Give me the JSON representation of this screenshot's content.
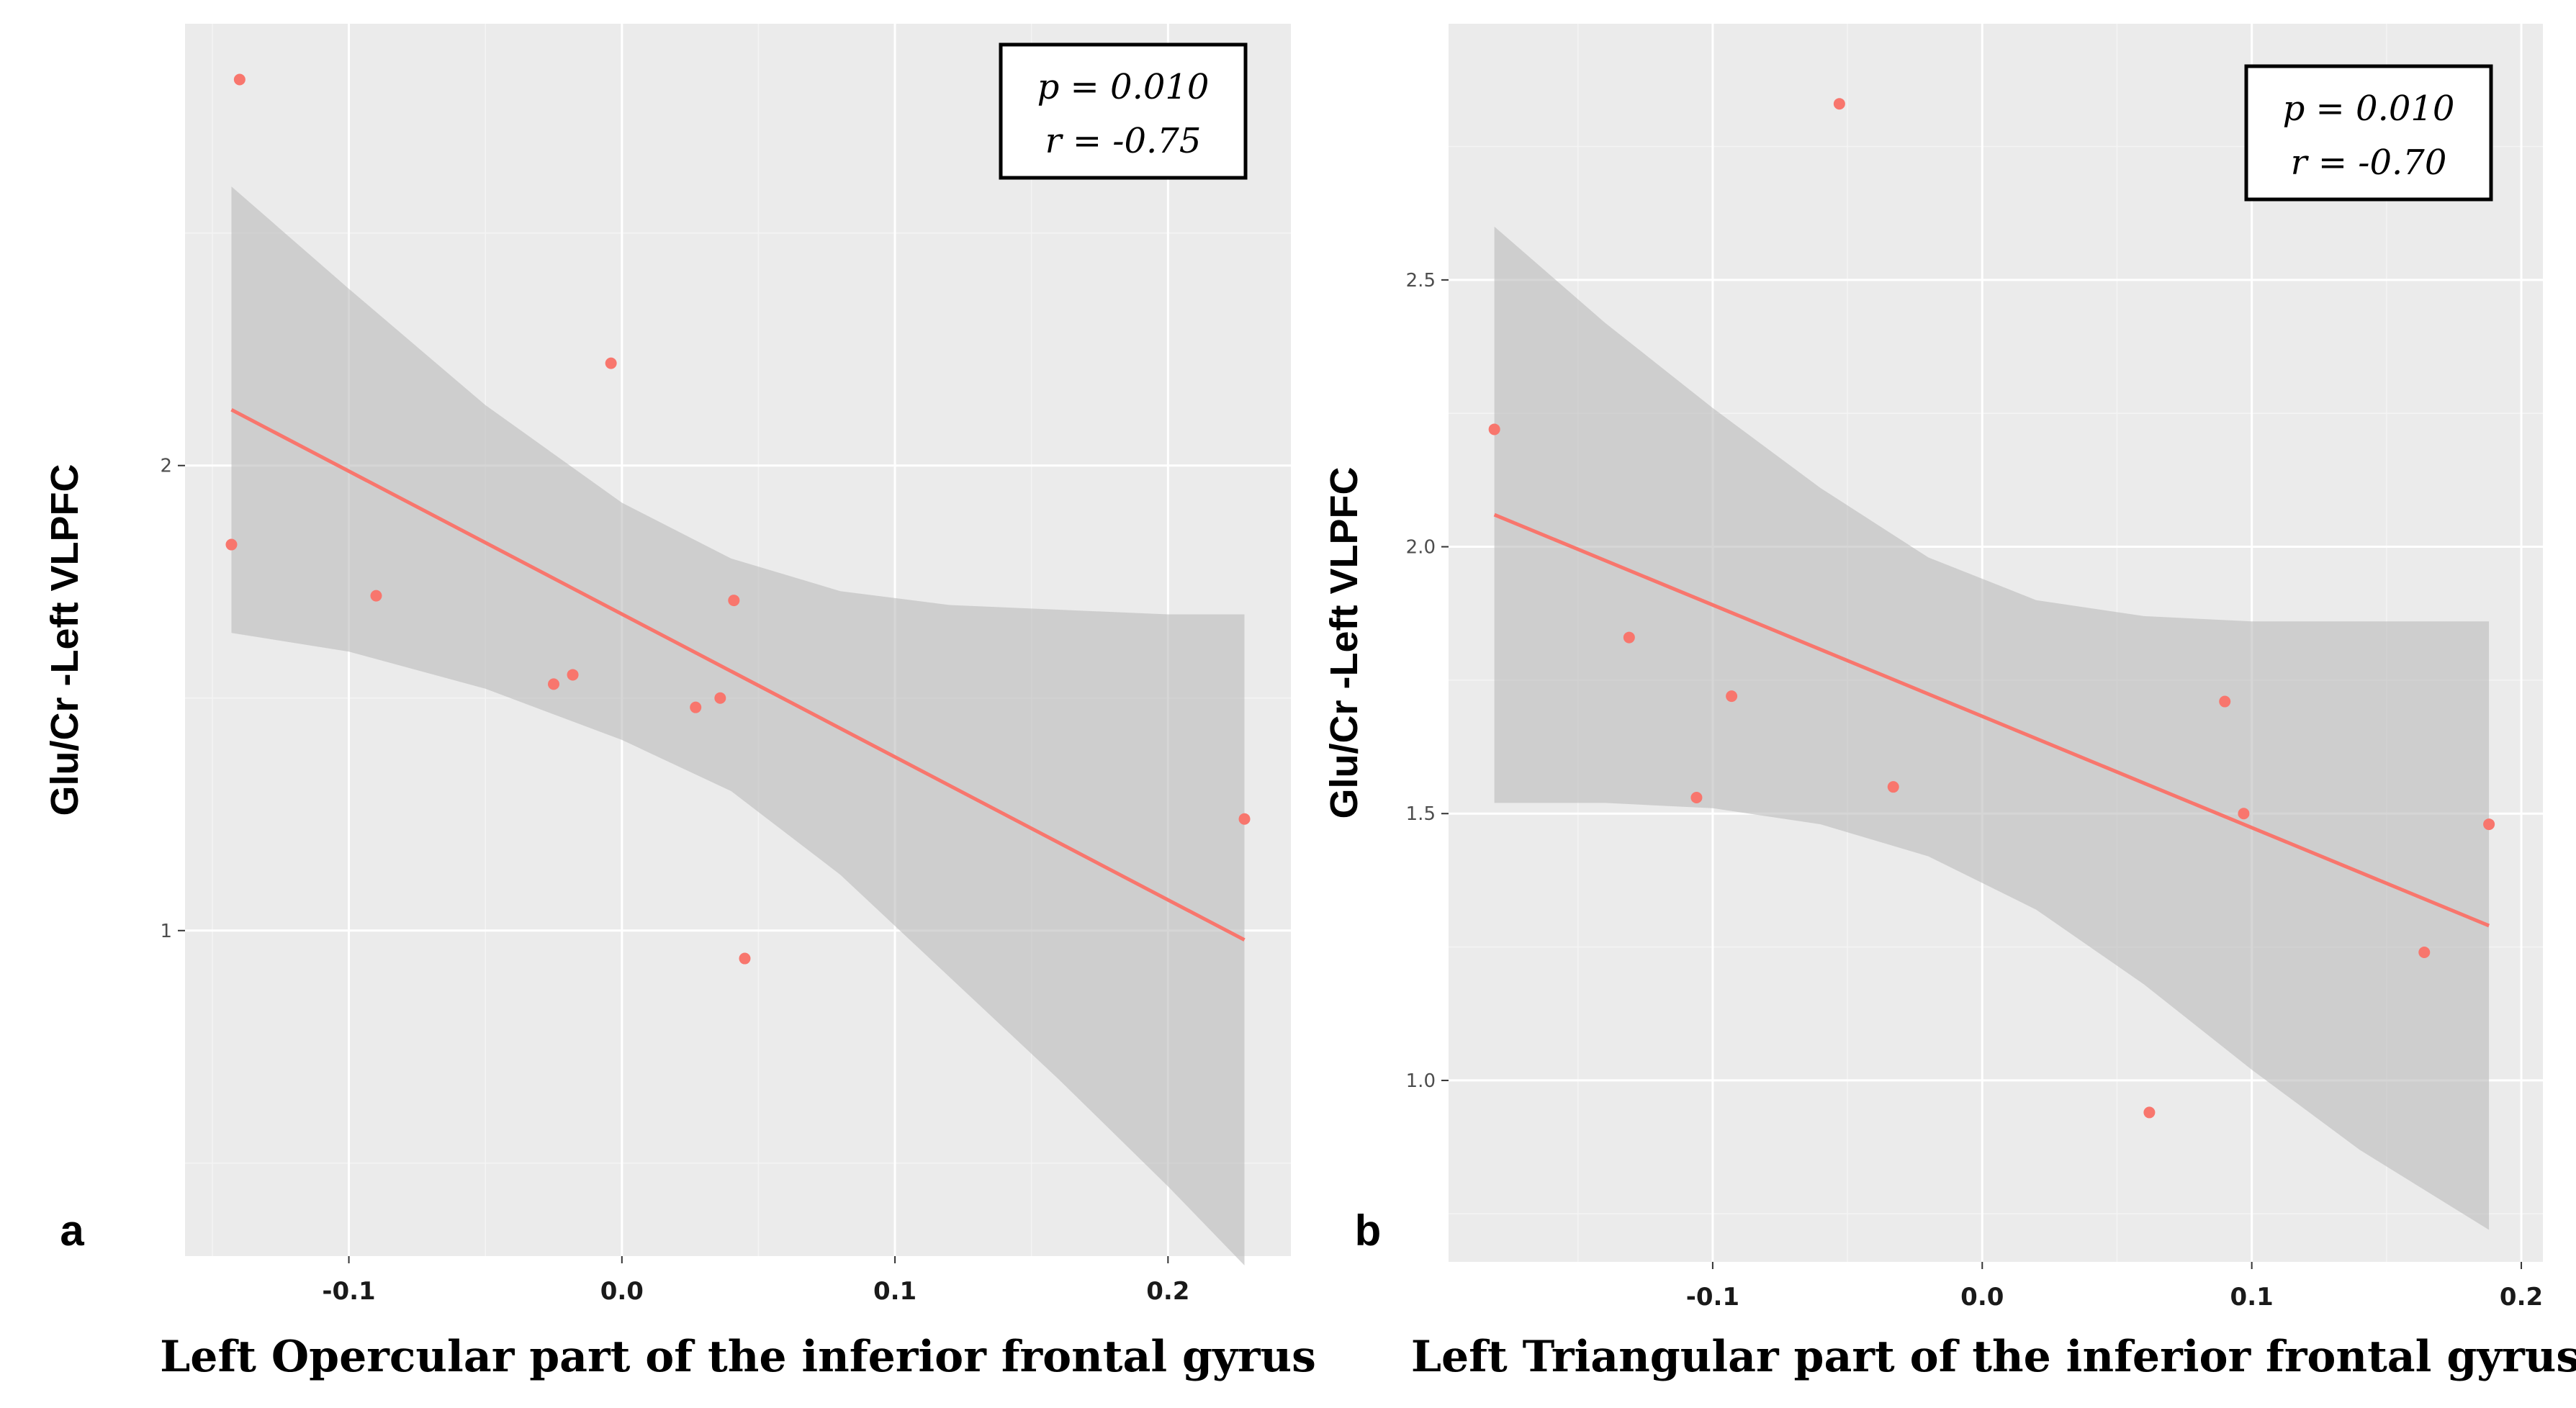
{
  "chart_data": [
    {
      "type": "scatter",
      "panel_label": "a",
      "xlabel": "Left Opercular part of the inferior frontal gyrus",
      "ylabel": "Glu/Cr -Left VLPFC",
      "xlim": [
        -0.16,
        0.245
      ],
      "ylim": [
        0.3,
        2.95
      ],
      "x_ticks": [
        -0.1,
        0.0,
        0.1,
        0.2
      ],
      "x_tick_labels": [
        "-0.1",
        "0.0",
        "0.1",
        "0.2"
      ],
      "y_ticks": [
        1,
        2
      ],
      "y_tick_labels": [
        "1",
        "2"
      ],
      "points": [
        {
          "x": -0.14,
          "y": 2.83
        },
        {
          "x": -0.143,
          "y": 1.83
        },
        {
          "x": -0.09,
          "y": 1.72
        },
        {
          "x": -0.004,
          "y": 2.22
        },
        {
          "x": -0.025,
          "y": 1.53
        },
        {
          "x": -0.018,
          "y": 1.55
        },
        {
          "x": 0.027,
          "y": 1.48
        },
        {
          "x": 0.036,
          "y": 1.5
        },
        {
          "x": 0.041,
          "y": 1.71
        },
        {
          "x": 0.045,
          "y": 0.94
        },
        {
          "x": 0.228,
          "y": 1.24
        }
      ],
      "fit": {
        "x_start": -0.143,
        "y_start": 2.12,
        "x_end": 0.228,
        "y_end": 0.98
      },
      "ci_band": {
        "x": [
          -0.143,
          -0.1,
          -0.05,
          0.0,
          0.04,
          0.08,
          0.12,
          0.16,
          0.2,
          0.228
        ],
        "upper": [
          2.6,
          2.38,
          2.13,
          1.92,
          1.8,
          1.73,
          1.7,
          1.69,
          1.68,
          1.68
        ],
        "lower": [
          1.64,
          1.6,
          1.52,
          1.41,
          1.3,
          1.12,
          0.9,
          0.68,
          0.45,
          0.28
        ]
      },
      "stats": {
        "p": "p = 0.010",
        "r": "r = -0.75"
      }
    },
    {
      "type": "scatter",
      "panel_label": "b",
      "xlabel": "Left Triangular part of the inferior frontal gyrus",
      "ylabel": "Glu/Cr -Left VLPFC",
      "xlim": [
        -0.198,
        0.208
      ],
      "ylim": [
        0.66,
        2.98
      ],
      "x_ticks": [
        -0.1,
        0.0,
        0.1,
        0.2
      ],
      "x_tick_labels": [
        "-0.1",
        "0.0",
        "0.1",
        "0.2"
      ],
      "y_ticks": [
        1.0,
        1.5,
        2.0,
        2.5
      ],
      "y_tick_labels": [
        "1.0",
        "1.5",
        "2.0",
        "2.5"
      ],
      "points": [
        {
          "x": -0.053,
          "y": 2.83
        },
        {
          "x": -0.181,
          "y": 2.22
        },
        {
          "x": -0.131,
          "y": 1.83
        },
        {
          "x": -0.093,
          "y": 1.72
        },
        {
          "x": -0.106,
          "y": 1.53
        },
        {
          "x": -0.033,
          "y": 1.55
        },
        {
          "x": 0.09,
          "y": 1.71
        },
        {
          "x": 0.097,
          "y": 1.5
        },
        {
          "x": 0.062,
          "y": 0.94
        },
        {
          "x": 0.164,
          "y": 1.24
        },
        {
          "x": 0.188,
          "y": 1.48
        }
      ],
      "fit": {
        "x_start": -0.181,
        "y_start": 2.06,
        "x_end": 0.188,
        "y_end": 1.29
      },
      "ci_band": {
        "x": [
          -0.181,
          -0.14,
          -0.1,
          -0.06,
          -0.02,
          0.02,
          0.06,
          0.1,
          0.14,
          0.188
        ],
        "upper": [
          2.6,
          2.42,
          2.26,
          2.11,
          1.98,
          1.9,
          1.87,
          1.86,
          1.86,
          1.86
        ],
        "lower": [
          1.52,
          1.52,
          1.51,
          1.48,
          1.42,
          1.32,
          1.18,
          1.02,
          0.87,
          0.72
        ]
      },
      "stats": {
        "p": "p = 0.010",
        "r": "r = -0.70"
      }
    }
  ]
}
